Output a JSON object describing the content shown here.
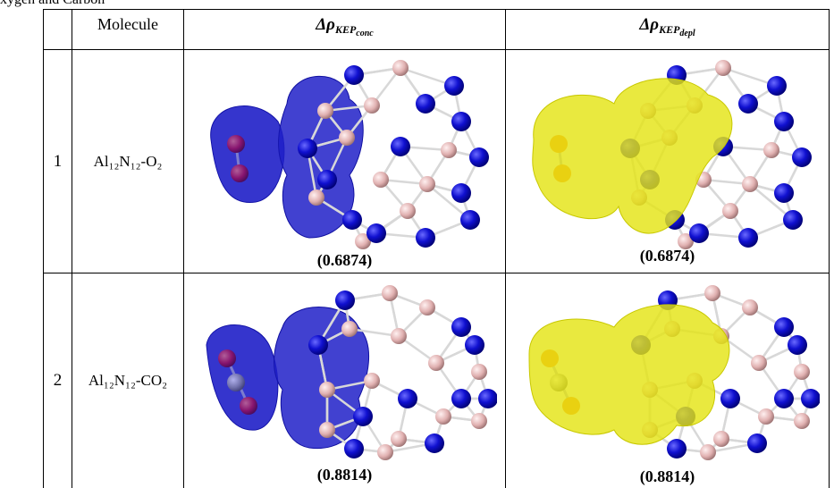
{
  "caption": "xygen and Carbon",
  "table": {
    "header": [
      null,
      "Molecule",
      {
        "symbol": "Δρ",
        "sub": "KEP",
        "subsub": "conc"
      },
      {
        "symbol": "Δρ",
        "sub": "KEP",
        "subsub": "depl"
      }
    ],
    "rows": [
      [
        "1",
        "Al₁₂N₁₂-O₂",
        "(0.6874)",
        "(0.6874)"
      ],
      [
        "2",
        "Al₁₂N₁₂-CO₂",
        "(0.8814)",
        "(0.8814)"
      ]
    ]
  }
}
